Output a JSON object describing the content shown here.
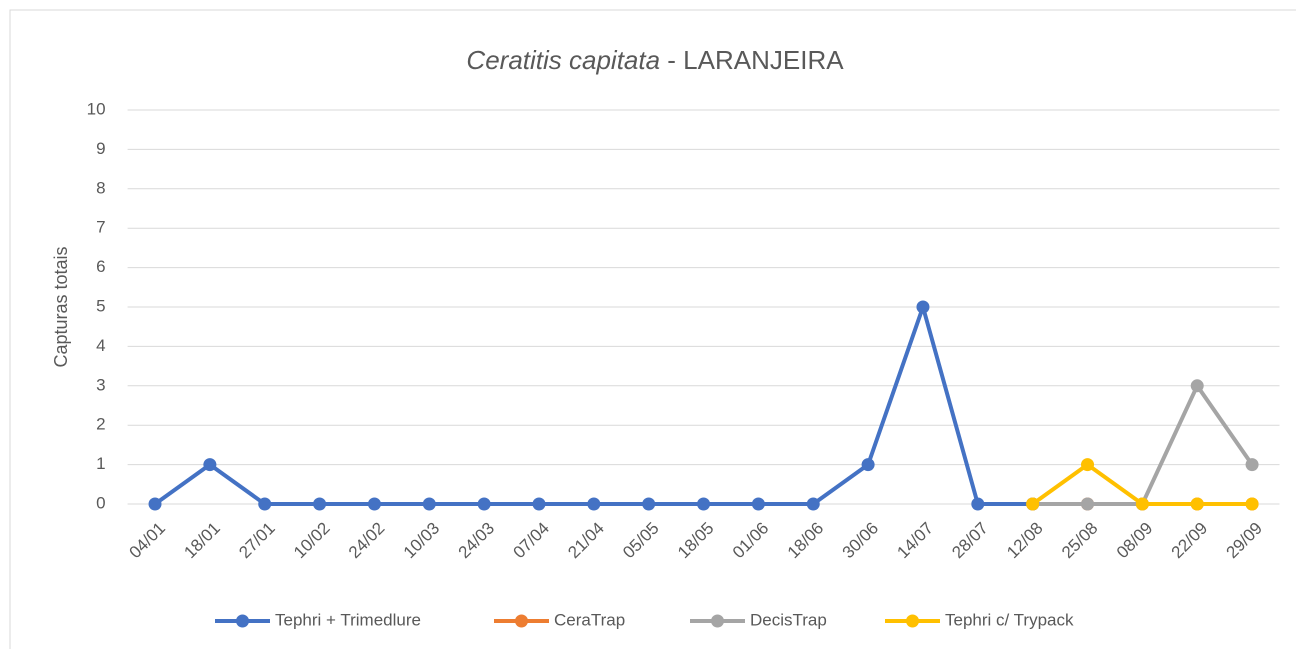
{
  "chart_data": {
    "type": "line",
    "title_italic": "Ceratitis capitata",
    "title": " - LARANJEIRA",
    "y_label": "Capturas totais",
    "categories": [
      "04/01",
      "18/01",
      "27/01",
      "10/02",
      "24/02",
      "10/03",
      "24/03",
      "07/04",
      "21/04",
      "05/05",
      "18/05",
      "01/06",
      "18/06",
      "30/06",
      "14/07",
      "28/07",
      "12/08",
      "25/08",
      "08/09",
      "22/09",
      "29/09"
    ],
    "series": [
      {
        "name": "Tephri + Trimedlure",
        "color": "#4472c4",
        "values": [
          0,
          1,
          0,
          0,
          0,
          0,
          0,
          0,
          0,
          0,
          0,
          0,
          0,
          1,
          5,
          0,
          0,
          null,
          null,
          null,
          null
        ]
      },
      {
        "name": "CeraTrap",
        "color": "#ed7d31",
        "values": [
          null,
          null,
          null,
          null,
          null,
          null,
          null,
          null,
          null,
          null,
          null,
          null,
          null,
          null,
          null,
          null,
          0,
          0,
          0,
          0,
          0
        ]
      },
      {
        "name": "DecisTrap",
        "color": "#a5a5a5",
        "values": [
          null,
          null,
          null,
          null,
          null,
          null,
          null,
          null,
          null,
          null,
          null,
          null,
          null,
          null,
          null,
          null,
          0,
          0,
          0,
          3,
          1
        ]
      },
      {
        "name": "Tephri c/ Trypack",
        "color": "#ffc000",
        "values": [
          null,
          null,
          null,
          null,
          null,
          null,
          null,
          null,
          null,
          null,
          null,
          null,
          null,
          null,
          null,
          null,
          0,
          1,
          0,
          0,
          0
        ]
      }
    ],
    "ylim": [
      0,
      10
    ],
    "yticks": [
      0,
      1,
      2,
      3,
      4,
      5,
      6,
      7,
      8,
      9,
      10
    ],
    "grid": true,
    "legend": "bottom"
  }
}
